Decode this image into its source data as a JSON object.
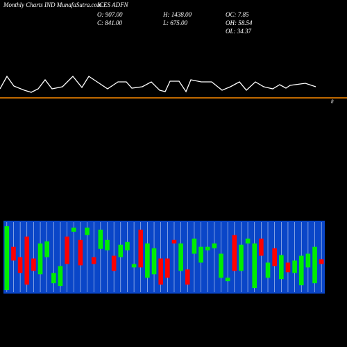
{
  "header": {
    "site": "Monthly Charts IND MunafaSutra.com",
    "symbol": "ICES ADFN",
    "open": "O: 907.00",
    "close": "C: 841.00",
    "high": "H: 1438.00",
    "low": "L: 675.00",
    "oc": "OC: 7.85",
    "oh": "OH: 58.54",
    "ol": "OL: 34.37"
  },
  "chart_data": [
    {
      "type": "line",
      "color": "#ffffff",
      "x": [
        0,
        10,
        20,
        35,
        45,
        55,
        65,
        75,
        90,
        105,
        118,
        128,
        140,
        155,
        170,
        182,
        190,
        205,
        218,
        230,
        238,
        245,
        258,
        268,
        275,
        290,
        305,
        320,
        332,
        345,
        355,
        368,
        380,
        393,
        403,
        412,
        418,
        440,
        455
      ],
      "values": [
        17,
        35,
        21,
        15,
        12,
        17,
        30,
        17,
        20,
        35,
        19,
        35,
        27,
        17,
        27,
        27,
        18,
        20,
        27,
        15,
        13,
        28,
        28,
        13,
        30,
        27,
        27,
        15,
        20,
        27,
        15,
        27,
        20,
        17,
        23,
        18,
        22,
        25,
        20
      ],
      "xlim": [
        0,
        500
      ],
      "ylim": [
        0,
        50
      ],
      "hline_color": "#ff8c00",
      "annotation": "8"
    },
    {
      "type": "candlestick",
      "background": "#0a46c8",
      "up_color": "#00ee00",
      "down_color": "#ff0000",
      "open": [
        2,
        65,
        50,
        80,
        48,
        25,
        50,
        12,
        8,
        80,
        87,
        75,
        82,
        50,
        62,
        60,
        52,
        50,
        60,
        35,
        90,
        20,
        25,
        48,
        48,
        75,
        30,
        32,
        55,
        42,
        60,
        63,
        20,
        15,
        82,
        30,
        70,
        5,
        77,
        20,
        63,
        18,
        42,
        27,
        9,
        35,
        12,
        47
      ],
      "close": [
        95,
        45,
        27,
        10,
        30,
        70,
        73,
        27,
        37,
        40,
        93,
        38,
        93,
        40,
        90,
        75,
        30,
        68,
        72,
        40,
        35,
        70,
        63,
        10,
        20,
        70,
        70,
        10,
        77,
        65,
        65,
        70,
        55,
        20,
        30,
        68,
        77,
        70,
        52,
        42,
        37,
        53,
        28,
        45,
        52,
        55,
        65,
        40
      ],
      "ylim": [
        0,
        100
      ]
    }
  ]
}
